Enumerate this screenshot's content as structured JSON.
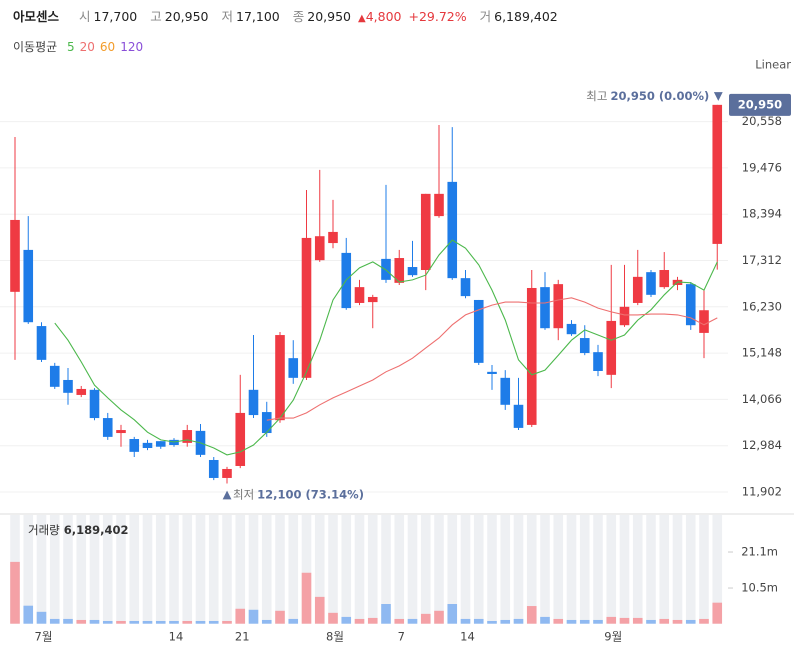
{
  "header": {
    "name": "아모센스",
    "items": [
      {
        "label": "시",
        "value": "17,700"
      },
      {
        "label": "고",
        "value": "20,950"
      },
      {
        "label": "저",
        "value": "17,100"
      },
      {
        "label": "종",
        "value": "20,950"
      }
    ],
    "change": {
      "arrow": "▲",
      "amount": "4,800",
      "pct": "+29.72%"
    },
    "volume": {
      "label": "거",
      "value": "6,189,402"
    }
  },
  "ma_legend": {
    "title": "이동평균",
    "legend_only": [
      {
        "name": "60",
        "color": "#f39c2a"
      },
      {
        "name": "120",
        "color": "#8a4fd8"
      }
    ]
  },
  "chart_data": [
    {
      "type": "candlestick",
      "scale_label": "Linear",
      "log": false,
      "grid": true,
      "up_color": "#ef3a43",
      "down_color": "#1e7ce8",
      "categories": [
        null,
        null,
        "7월",
        null,
        null,
        null,
        null,
        null,
        null,
        null,
        null,
        null,
        "14",
        null,
        null,
        null,
        null,
        "21",
        null,
        null,
        null,
        null,
        null,
        null,
        "8월",
        null,
        null,
        null,
        null,
        "7",
        null,
        null,
        null,
        null,
        "14",
        null,
        null,
        null,
        null,
        null,
        null,
        null,
        null,
        null,
        null,
        "9월",
        null,
        null,
        null,
        null,
        null,
        null,
        null,
        null
      ],
      "open": [
        16580,
        17560,
        15780,
        14850,
        14520,
        14170,
        14290,
        13630,
        13280,
        13140,
        13050,
        13090,
        13120,
        13050,
        13330,
        12650,
        12230,
        12510,
        14290,
        13770,
        13580,
        15030,
        14570,
        17320,
        17720,
        17490,
        16320,
        16340,
        17350,
        16790,
        17160,
        17090,
        18350,
        19150,
        16900,
        16390,
        14710,
        14570,
        13940,
        13470,
        16690,
        15730,
        15830,
        15500,
        15170,
        14640,
        15800,
        16320,
        17040,
        16690,
        16740,
        16760,
        15620,
        17700
      ],
      "high": [
        20200,
        18350,
        15870,
        14920,
        14800,
        14380,
        14330,
        13750,
        13470,
        13190,
        13120,
        13090,
        13160,
        13470,
        13490,
        12720,
        12490,
        14640,
        15570,
        14010,
        15640,
        15450,
        18960,
        19430,
        18730,
        17840,
        16860,
        16510,
        19080,
        17560,
        17770,
        18870,
        20480,
        20430,
        17090,
        16390,
        14870,
        14750,
        14570,
        17090,
        17040,
        16860,
        15920,
        15800,
        15340,
        17210,
        17210,
        17560,
        17090,
        17510,
        16930,
        16810,
        16620,
        20950
      ],
      "low": [
        14990,
        15830,
        14940,
        14310,
        13940,
        14120,
        13580,
        13120,
        12960,
        12720,
        12880,
        12910,
        12960,
        12960,
        12720,
        12180,
        12100,
        12460,
        13630,
        13190,
        13520,
        14430,
        14520,
        17280,
        17600,
        16160,
        16270,
        15730,
        16790,
        16740,
        16930,
        16620,
        18310,
        16860,
        16430,
        14870,
        14290,
        13820,
        13350,
        13420,
        15690,
        15450,
        15550,
        15100,
        14610,
        14330,
        15760,
        16270,
        16460,
        16650,
        16620,
        15690,
        15030,
        17100
      ],
      "close": [
        18260,
        15870,
        14990,
        14360,
        14220,
        14310,
        13630,
        13190,
        13350,
        12840,
        12930,
        12960,
        13000,
        13350,
        12770,
        12230,
        12440,
        13750,
        13700,
        13280,
        15570,
        14570,
        17840,
        17880,
        17980,
        16200,
        16690,
        16460,
        16860,
        17370,
        16970,
        18870,
        18870,
        16900,
        16480,
        14920,
        14660,
        13940,
        13400,
        16670,
        15730,
        16760,
        15590,
        15150,
        14730,
        15900,
        16230,
        16930,
        16510,
        17090,
        16860,
        15800,
        16150,
        20950
      ],
      "series": [
        {
          "name": "5",
          "color": "#4cb84c",
          "values": [
            null,
            null,
            null,
            15850,
            15450,
            14940,
            14400,
            14100,
            13820,
            13590,
            13300,
            13120,
            13070,
            13120,
            13050,
            12930,
            12770,
            12840,
            13000,
            13300,
            13630,
            14050,
            14710,
            15450,
            16390,
            16860,
            17140,
            17280,
            17090,
            16810,
            16860,
            16970,
            17440,
            17790,
            17600,
            17210,
            16620,
            15920,
            14990,
            14640,
            14750,
            15100,
            15450,
            15690,
            15570,
            15450,
            15570,
            15920,
            16160,
            16510,
            16810,
            16790,
            16620,
            17280
          ]
        },
        {
          "name": "20",
          "color": "#ee7070",
          "values": [
            null,
            null,
            null,
            null,
            null,
            null,
            null,
            null,
            null,
            null,
            null,
            null,
            null,
            null,
            null,
            null,
            null,
            null,
            null,
            13580,
            13630,
            13630,
            13750,
            13940,
            14100,
            14240,
            14380,
            14520,
            14710,
            14850,
            15030,
            15270,
            15500,
            15810,
            16040,
            16160,
            16270,
            16340,
            16340,
            16320,
            16320,
            16390,
            16440,
            16340,
            16200,
            16110,
            16040,
            16040,
            16060,
            16060,
            16040,
            15970,
            15810,
            15970
          ]
        }
      ],
      "ylim": [
        11598,
        21414
      ],
      "yticks": [
        {
          "value": 11902,
          "label": "11,902"
        },
        {
          "value": 12984,
          "label": "12,984"
        },
        {
          "value": 14066,
          "label": "14,066"
        },
        {
          "value": 15148,
          "label": "15,148"
        },
        {
          "value": 16230,
          "label": "16,230"
        },
        {
          "value": 17312,
          "label": "17,312"
        },
        {
          "value": 18394,
          "label": "18,394"
        },
        {
          "value": 19476,
          "label": "19,476"
        },
        {
          "value": 20558,
          "label": "20,558"
        }
      ],
      "last_price_label": "20,950",
      "annotations": {
        "high": {
          "label": "최고",
          "value": "20,950 (0.00%)",
          "arrow": "▼"
        },
        "low": {
          "label": "최저",
          "value": "12,100 (73.14%)",
          "arrow": "▲"
        }
      }
    },
    {
      "type": "bar",
      "title": "거래량",
      "title_value": "6,189,402",
      "up_color": "#f4a1a6",
      "down_color": "#8fb9f1",
      "values": [
        18200000,
        5300000,
        3500000,
        1400000,
        1400000,
        1100000,
        1100000,
        800000,
        800000,
        800000,
        800000,
        800000,
        800000,
        800000,
        800000,
        800000,
        800000,
        4400000,
        4100000,
        1100000,
        3800000,
        1400000,
        15000000,
        7900000,
        3200000,
        2000000,
        1400000,
        1700000,
        5800000,
        1400000,
        1400000,
        2900000,
        3800000,
        5800000,
        1400000,
        1400000,
        800000,
        1100000,
        1400000,
        5200000,
        2000000,
        1400000,
        1100000,
        1100000,
        1100000,
        2000000,
        1700000,
        1700000,
        1100000,
        1400000,
        1100000,
        1100000,
        1400000,
        6189402
      ],
      "ylim": [
        0,
        32000000
      ],
      "yticks": [
        {
          "value": 10500000,
          "label": "10.5m"
        },
        {
          "value": 21100000,
          "label": "21.1m"
        }
      ]
    }
  ]
}
